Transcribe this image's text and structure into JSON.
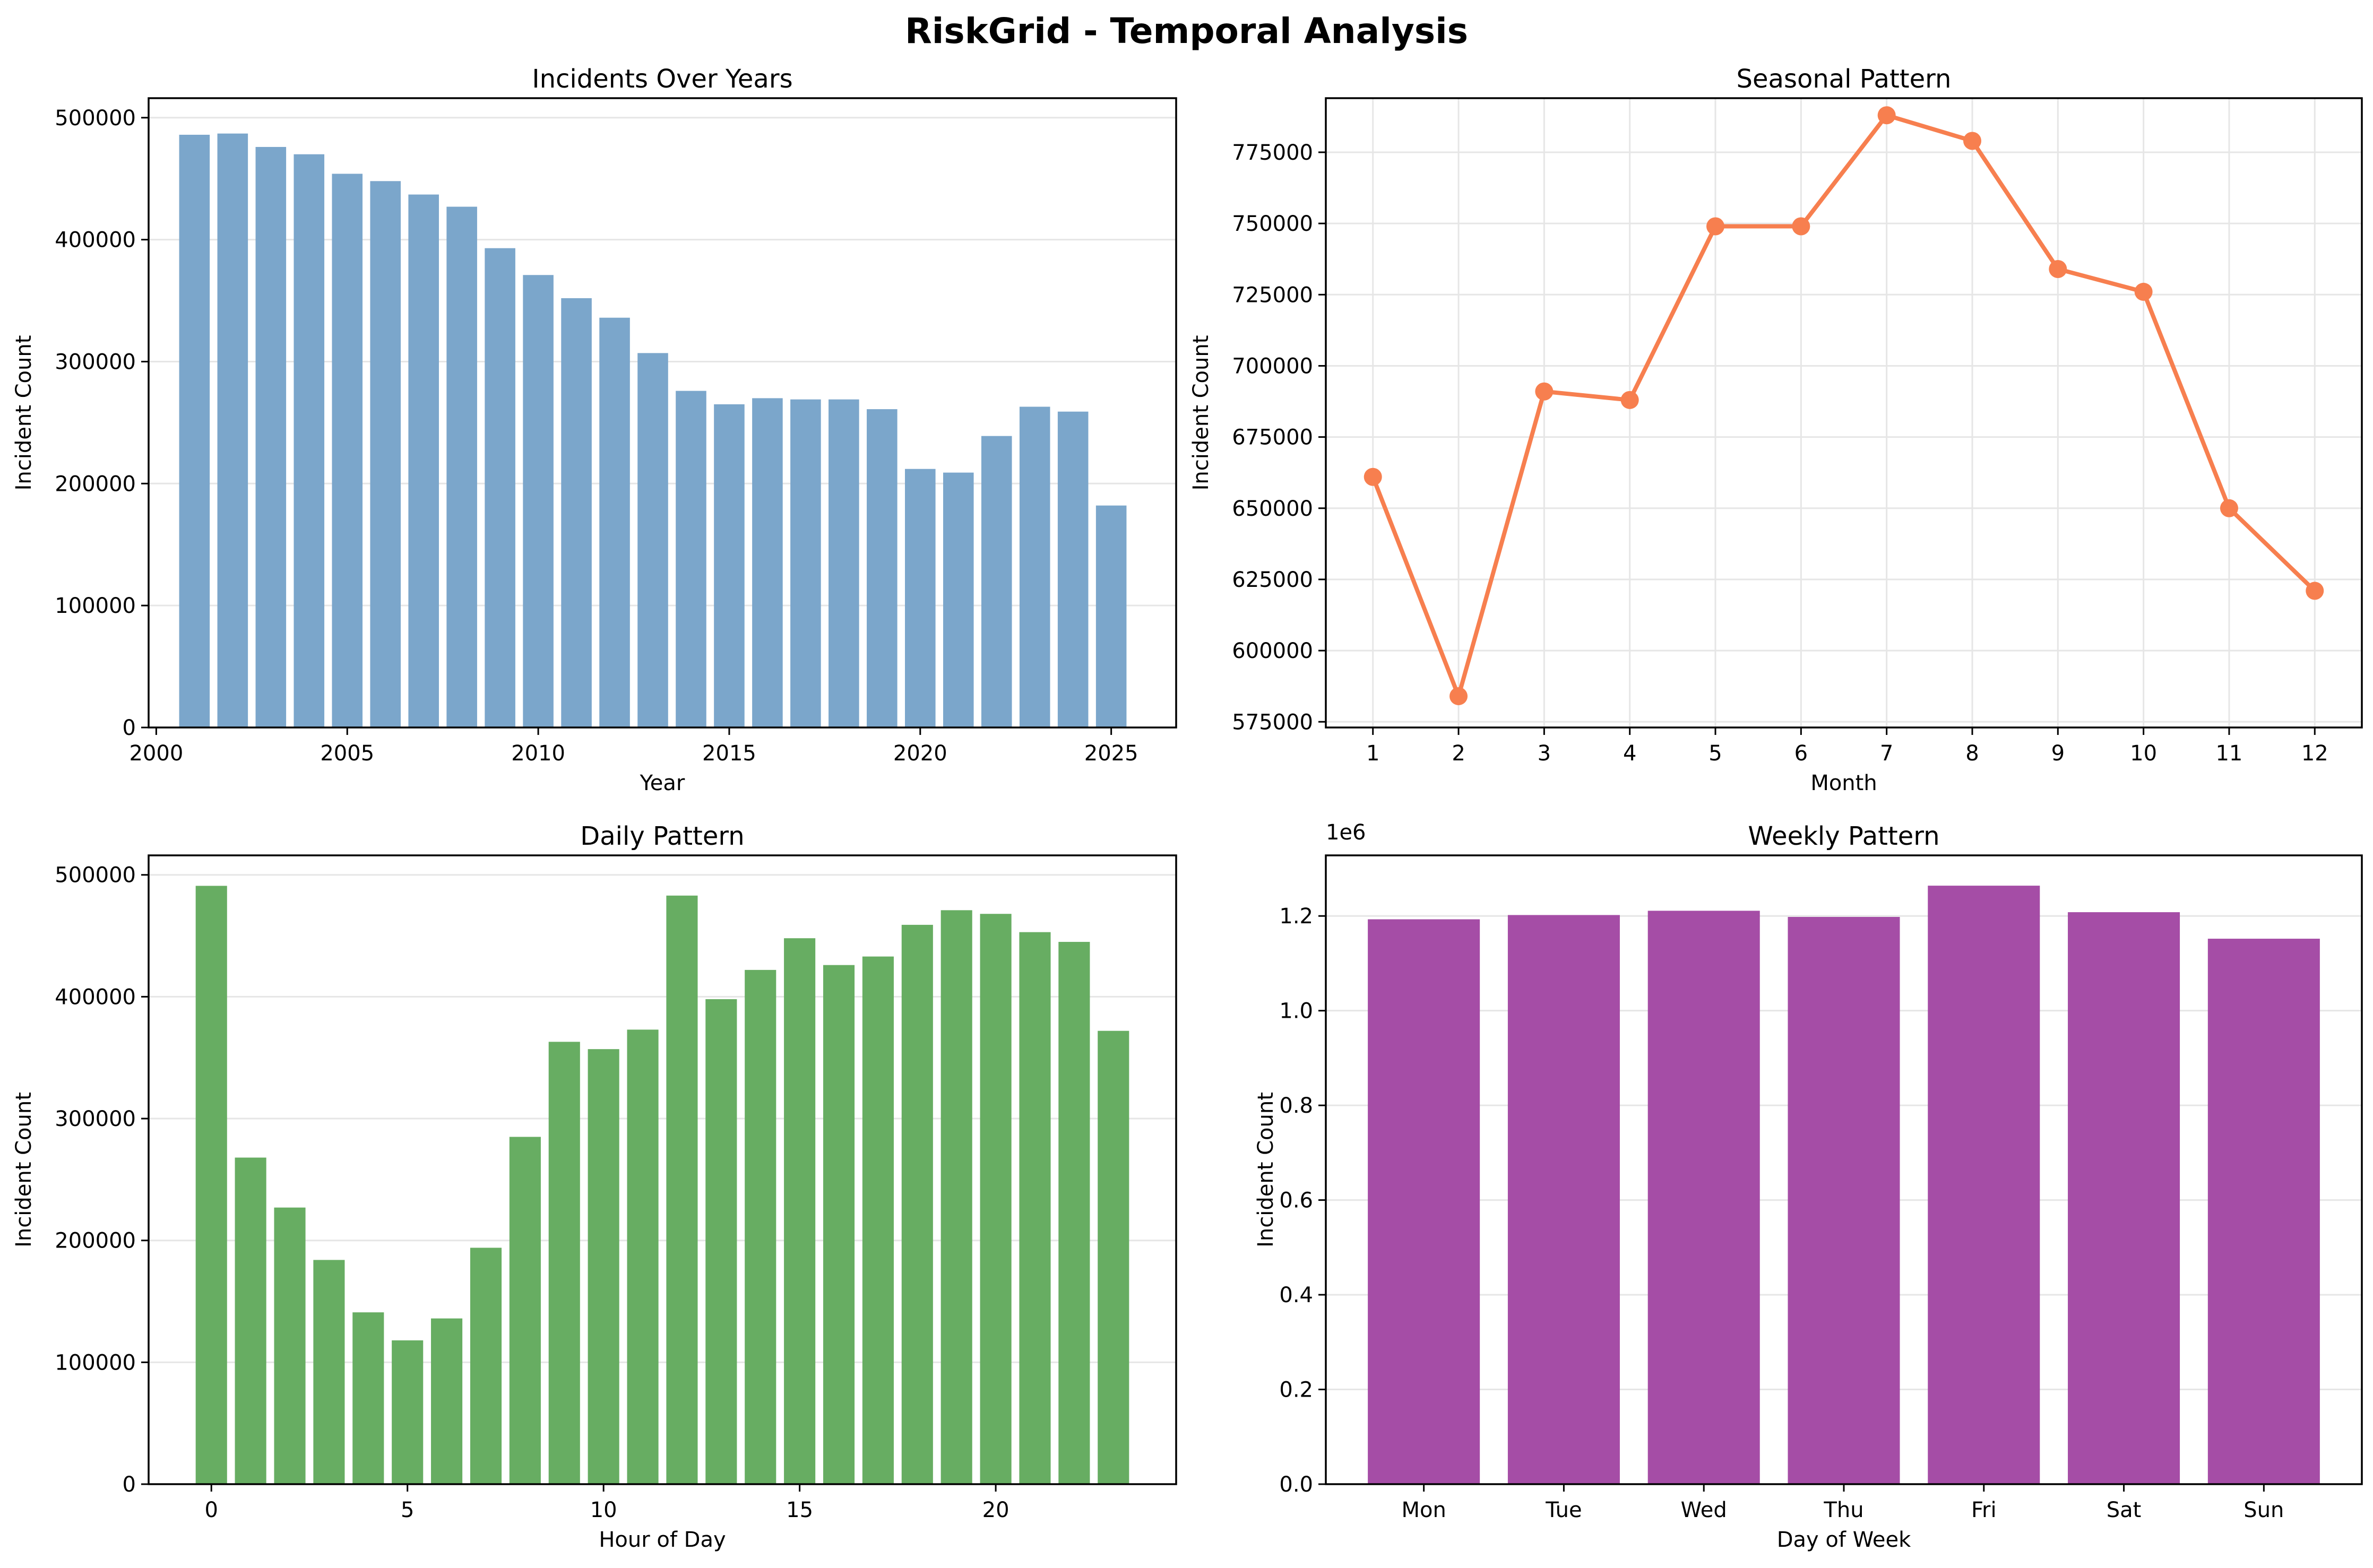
{
  "figure": {
    "title": "RiskGrid - Temporal Analysis"
  },
  "chart_data": [
    {
      "type": "bar",
      "title": "Incidents Over Years",
      "xlabel": "Year",
      "ylabel": "Incident Count",
      "x": [
        2001,
        2002,
        2003,
        2004,
        2005,
        2006,
        2007,
        2008,
        2009,
        2010,
        2011,
        2012,
        2013,
        2014,
        2015,
        2016,
        2017,
        2018,
        2019,
        2020,
        2021,
        2022,
        2023,
        2024,
        2025
      ],
      "values": [
        486000,
        487000,
        476000,
        470000,
        454000,
        448000,
        437000,
        427000,
        393000,
        371000,
        352000,
        336000,
        307000,
        276000,
        265000,
        270000,
        269000,
        269000,
        261000,
        212000,
        209000,
        239000,
        263000,
        259000,
        182000
      ],
      "xlim": [
        1999.8,
        2026.7
      ],
      "ylim": [
        0,
        516000
      ],
      "xticks": [
        2000,
        2005,
        2010,
        2015,
        2020,
        2025
      ],
      "yticks": [
        0,
        100000,
        200000,
        300000,
        400000,
        500000
      ],
      "grid": "y",
      "color": "#7ba6cb"
    },
    {
      "type": "line",
      "title": "Seasonal Pattern",
      "xlabel": "Month",
      "ylabel": "Incident Count",
      "x": [
        1,
        2,
        3,
        4,
        5,
        6,
        7,
        8,
        9,
        10,
        11,
        12
      ],
      "values": [
        661000,
        584000,
        691000,
        688000,
        749000,
        749000,
        788000,
        779000,
        734000,
        726000,
        650000,
        621000
      ],
      "xlim": [
        0.45,
        12.55
      ],
      "ylim": [
        573000,
        794000
      ],
      "xticks": [
        1,
        2,
        3,
        4,
        5,
        6,
        7,
        8,
        9,
        10,
        11,
        12
      ],
      "yticks": [
        575000,
        600000,
        625000,
        650000,
        675000,
        700000,
        725000,
        750000,
        775000
      ],
      "grid": "both",
      "color": "#f77f4f"
    },
    {
      "type": "bar",
      "title": "Daily Pattern",
      "xlabel": "Hour of Day",
      "ylabel": "Incident Count",
      "x": [
        0,
        1,
        2,
        3,
        4,
        5,
        6,
        7,
        8,
        9,
        10,
        11,
        12,
        13,
        14,
        15,
        16,
        17,
        18,
        19,
        20,
        21,
        22,
        23
      ],
      "values": [
        491000,
        268000,
        227000,
        184000,
        141000,
        118000,
        136000,
        194000,
        285000,
        363000,
        357000,
        373000,
        483000,
        398000,
        422000,
        448000,
        426000,
        433000,
        459000,
        471000,
        468000,
        453000,
        445000,
        372000
      ],
      "xlim": [
        -1.6,
        24.6
      ],
      "ylim": [
        0,
        516000
      ],
      "xticks": [
        0,
        5,
        10,
        15,
        20
      ],
      "yticks": [
        0,
        100000,
        200000,
        300000,
        400000,
        500000
      ],
      "grid": "y",
      "color": "#67ad62"
    },
    {
      "type": "bar",
      "title": "Weekly Pattern",
      "xlabel": "Day of Week",
      "ylabel": "Incident Count",
      "categories": [
        "Mon",
        "Tue",
        "Wed",
        "Thu",
        "Fri",
        "Sat",
        "Sun"
      ],
      "values": [
        1.193,
        1.202,
        1.211,
        1.198,
        1.264,
        1.208,
        1.152
      ],
      "offset_label": "1e6",
      "ylim": [
        0,
        1.328
      ],
      "yticks": [
        0.0,
        0.2,
        0.4,
        0.6,
        0.8,
        1.0,
        1.2
      ],
      "ytick_labels": [
        "0.0",
        "0.2",
        "0.4",
        "0.6",
        "0.8",
        "1.0",
        "1.2"
      ],
      "grid": "y",
      "color": "#a54da6"
    }
  ]
}
